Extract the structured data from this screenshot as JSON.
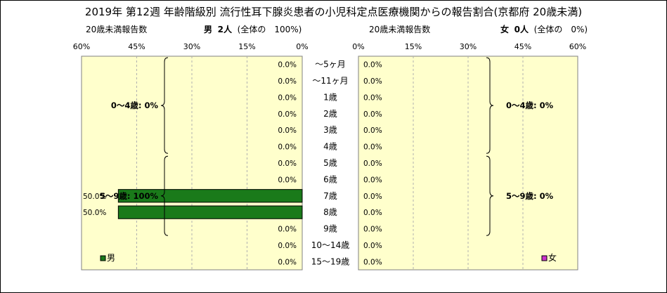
{
  "title": "2019年 第12週 年齢階級別 流行性耳下腺炎患者の小児科定点医療機関からの報告割合(京都府 20歳未満)",
  "male": {
    "note": "20歳未満報告数",
    "sex": "男",
    "count": "2人",
    "share": "(全体の　100%)",
    "legend": "男",
    "bar_color": "#1a7a1a"
  },
  "female": {
    "note": "20歳未満報告数",
    "sex": "女",
    "count": "0人",
    "share": "(全体の　0%)",
    "legend": "女",
    "bar_color": "#cc33cc"
  },
  "chart_data": {
    "type": "bar",
    "orientation": "horizontal",
    "categories": [
      "～5ヶ月",
      "～11ヶ月",
      "1歳",
      "2歳",
      "3歳",
      "4歳",
      "5歳",
      "6歳",
      "7歳",
      "8歳",
      "9歳",
      "10～14歳",
      "15～19歳"
    ],
    "series": [
      {
        "name": "男",
        "values": [
          0,
          0,
          0,
          0,
          0,
          0,
          0,
          0,
          50,
          50,
          0,
          0,
          0
        ],
        "labels": [
          "0.0%",
          "0.0%",
          "0.0%",
          "0.0%",
          "0.0%",
          "0.0%",
          "0.0%",
          "0.0%",
          "50.0%",
          "50.0%",
          "0.0%",
          "0.0%",
          "0.0%"
        ]
      },
      {
        "name": "女",
        "values": [
          0,
          0,
          0,
          0,
          0,
          0,
          0,
          0,
          0,
          0,
          0,
          0,
          0
        ],
        "labels": [
          "0.0%",
          "0.0%",
          "0.0%",
          "0.0%",
          "0.0%",
          "0.0%",
          "0.0%",
          "0.0%",
          "0.0%",
          "0.0%",
          "0.0%",
          "0.0%",
          "0.0%"
        ]
      }
    ],
    "xlim": [
      0,
      60
    ],
    "ticks": [
      0,
      15,
      30,
      45,
      60
    ],
    "tick_labels_male": [
      "60%",
      "45%",
      "30%",
      "15%",
      "0%"
    ],
    "tick_labels_female": [
      "0%",
      "15%",
      "30%",
      "45%",
      "60%"
    ],
    "groups_male": [
      {
        "label": "0～4歳: 0%",
        "from": 0,
        "to": 5
      },
      {
        "label": "5～9歳: 100%",
        "from": 6,
        "to": 10
      }
    ],
    "groups_female": [
      {
        "label": "0～4歳: 0%",
        "from": 0,
        "to": 5
      },
      {
        "label": "5～9歳: 0%",
        "from": 6,
        "to": 10
      }
    ],
    "plot_color": "#ffffcc",
    "grid": true
  }
}
